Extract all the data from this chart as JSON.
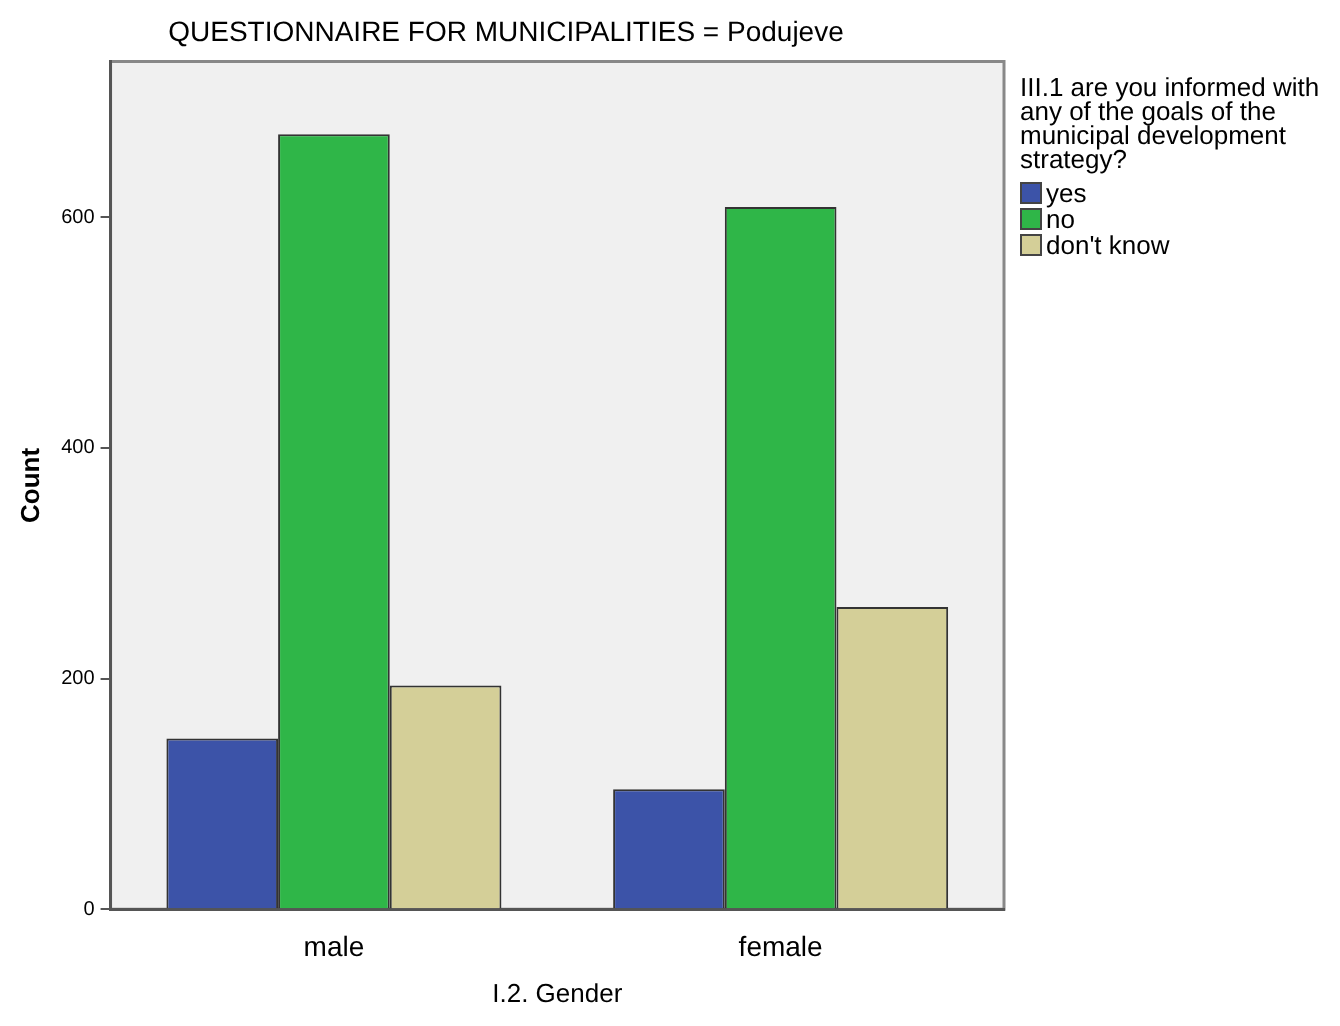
{
  "chart_data": {
    "type": "bar",
    "title": "QUESTIONNAIRE FOR MUNICIPALITIES = Podujeve",
    "xlabel": "I.2. Gender",
    "ylabel": "Count",
    "legend_title": "III.1 are you informed with any of the goals of the municipal development strategy?",
    "categories": [
      "male",
      "female"
    ],
    "series": [
      {
        "name": "yes",
        "color": "#3c53a8",
        "values": [
          148,
          104
        ]
      },
      {
        "name": "no",
        "color": "#2fb648",
        "values": [
          672,
          609
        ]
      },
      {
        "name": "don't know",
        "color": "#d4cf98",
        "values": [
          194,
          262
        ]
      }
    ],
    "ylim": [
      0,
      735
    ],
    "yticks": [
      0,
      200,
      400,
      600
    ],
    "grid": false,
    "legend": "right"
  }
}
